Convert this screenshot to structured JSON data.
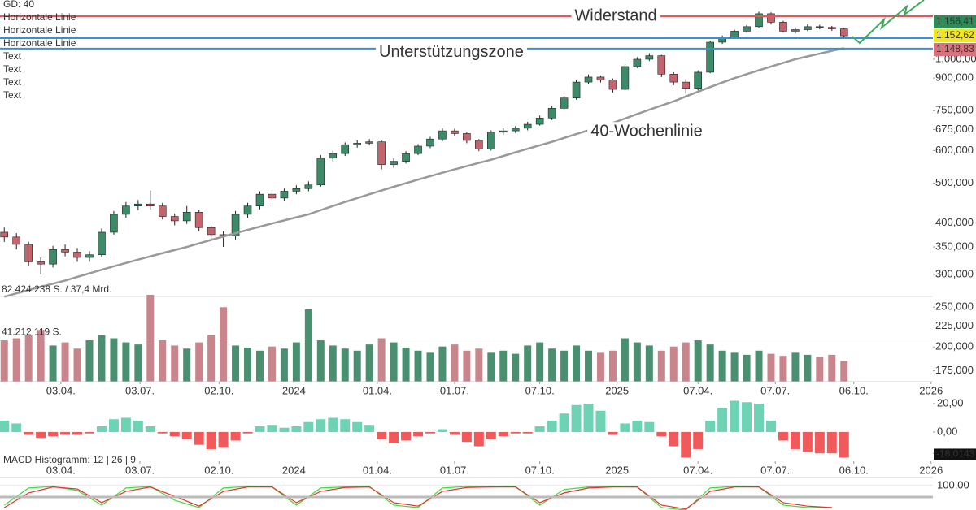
{
  "chart_data": {
    "type": "candlestick",
    "legend": [
      {
        "text": "GD: 40",
        "color": "#555555"
      },
      {
        "text": "Horizontale Linie",
        "color": "#3b8fd9"
      },
      {
        "text": "Horizontale Linie",
        "color": "#3b8fd9"
      },
      {
        "text": "Horizontale Linie",
        "color": "#e8545a"
      },
      {
        "text": "Text",
        "color": "#333333"
      },
      {
        "text": "Text",
        "color": "#333333"
      },
      {
        "text": "Text",
        "color": "#333333"
      },
      {
        "text": "Text",
        "color": "#333333"
      }
    ],
    "annotations": {
      "resistance": "Widerstand",
      "support": "Unterstützungszone",
      "ma_label": "40-Wochenlinie"
    },
    "lines": [
      {
        "value": 1272000,
        "color": "#e8545a"
      },
      {
        "value": 1125000,
        "color": "#3b8fd9"
      },
      {
        "value": 1061000,
        "color": "#3b8fd9"
      }
    ],
    "price_labels": [
      {
        "text": "1.156,41",
        "color": "#2e8b57"
      },
      {
        "text": "1.152,62",
        "color": "#f5e61a"
      },
      {
        "text": "1.148,83",
        "color": "#d9737b"
      }
    ],
    "x": [
      0,
      2,
      4,
      6,
      8,
      10,
      12,
      14,
      16,
      18,
      20,
      22,
      24,
      26,
      28,
      30,
      32,
      34,
      36,
      38,
      40,
      42,
      44,
      46,
      48,
      50,
      52,
      54,
      56,
      58,
      60,
      62,
      64,
      66,
      68,
      70,
      72,
      74,
      76,
      78,
      80,
      82,
      84,
      86,
      88,
      90,
      92,
      94,
      96,
      98,
      100,
      102,
      104,
      106,
      108,
      110,
      112,
      114,
      116,
      118,
      120,
      122,
      124,
      126,
      128,
      130,
      132,
      134,
      136,
      138
    ],
    "open": [
      380000,
      370000,
      355000,
      322000,
      318000,
      345000,
      340000,
      330000,
      335000,
      380000,
      420000,
      440000,
      445000,
      440000,
      415000,
      405000,
      425000,
      390000,
      375000,
      372000,
      420000,
      440000,
      470000,
      460000,
      478000,
      485000,
      495000,
      575000,
      590000,
      620000,
      625000,
      630000,
      555000,
      565000,
      590000,
      615000,
      640000,
      670000,
      660000,
      635000,
      605000,
      665000,
      670000,
      680000,
      695000,
      720000,
      760000,
      805000,
      880000,
      905000,
      890000,
      845000,
      960000,
      1000000,
      1020000,
      920000,
      880000,
      850000,
      930000,
      1100000,
      1130000,
      1170000,
      1200000,
      1290000,
      1230000,
      1170000,
      1180000,
      1200000,
      1195000,
      1185000
    ],
    "high": [
      390000,
      378000,
      360000,
      330000,
      352000,
      355000,
      348000,
      342000,
      388000,
      428000,
      450000,
      455000,
      480000,
      448000,
      422000,
      440000,
      430000,
      395000,
      382000,
      428000,
      448000,
      478000,
      476000,
      485000,
      494000,
      505000,
      585000,
      600000,
      628000,
      635000,
      640000,
      635000,
      575000,
      598000,
      622000,
      648000,
      680000,
      678000,
      665000,
      640000,
      672000,
      680000,
      688000,
      705000,
      730000,
      770000,
      815000,
      892000,
      918000,
      912000,
      898000,
      972000,
      1012000,
      1035000,
      1025000,
      930000,
      895000,
      940000,
      1110000,
      1142000,
      1180000,
      1212000,
      1305000,
      1300000,
      1240000,
      1195000,
      1215000,
      1212000,
      1205000,
      1192000
    ],
    "low": [
      360000,
      345000,
      315000,
      300000,
      312000,
      332000,
      322000,
      322000,
      330000,
      375000,
      412000,
      430000,
      432000,
      408000,
      395000,
      398000,
      382000,
      365000,
      350000,
      365000,
      412000,
      432000,
      450000,
      452000,
      470000,
      478000,
      490000,
      565000,
      582000,
      610000,
      618000,
      540000,
      545000,
      558000,
      585000,
      608000,
      632000,
      650000,
      625000,
      598000,
      600000,
      655000,
      662000,
      672000,
      690000,
      712000,
      752000,
      798000,
      870000,
      878000,
      830000,
      840000,
      952000,
      990000,
      905000,
      865000,
      825000,
      840000,
      925000,
      1090000,
      1120000,
      1160000,
      1190000,
      1215000,
      1160000,
      1155000,
      1170000,
      1182000,
      1172000,
      1130000
    ],
    "close": [
      370000,
      355000,
      322000,
      318000,
      345000,
      340000,
      330000,
      335000,
      380000,
      420000,
      440000,
      445000,
      440000,
      415000,
      405000,
      425000,
      390000,
      375000,
      372000,
      420000,
      440000,
      470000,
      460000,
      478000,
      485000,
      495000,
      575000,
      590000,
      620000,
      625000,
      630000,
      555000,
      565000,
      590000,
      615000,
      640000,
      670000,
      660000,
      635000,
      605000,
      665000,
      670000,
      680000,
      695000,
      720000,
      760000,
      805000,
      880000,
      905000,
      890000,
      845000,
      960000,
      1000000,
      1020000,
      920000,
      880000,
      850000,
      930000,
      1100000,
      1130000,
      1170000,
      1200000,
      1290000,
      1230000,
      1170000,
      1180000,
      1200000,
      1195000,
      1185000,
      1140000
    ],
    "up_color": "#3d8a68",
    "down_color": "#c4646d",
    "ma_values": [
      265000,
      270000,
      275000,
      280000,
      285000,
      290000,
      296000,
      302000,
      308000,
      314000,
      320000,
      326000,
      332000,
      338000,
      344000,
      350000,
      357000,
      364000,
      371000,
      378000,
      385000,
      392000,
      399000,
      406000,
      413000,
      420000,
      430000,
      440000,
      450000,
      460000,
      470000,
      480000,
      490000,
      500000,
      510000,
      520000,
      530000,
      540000,
      550000,
      560000,
      570000,
      582000,
      594000,
      606000,
      618000,
      630000,
      644000,
      658000,
      672000,
      686000,
      700000,
      718000,
      736000,
      754000,
      772000,
      790000,
      812000,
      834000,
      856000,
      878000,
      900000,
      920000,
      940000,
      960000,
      980000,
      1000000,
      1016000,
      1032000,
      1048000,
      1064000
    ],
    "ma_color": "#999999",
    "log_scale": true,
    "xlim": [
      -0.7,
      153
    ],
    "xticks": [
      {
        "value": 9.3,
        "label": "03.04."
      },
      {
        "value": 22.3,
        "label": "03.07."
      },
      {
        "value": 35.3,
        "label": "02.10."
      },
      {
        "value": 47.6,
        "label": "2024"
      },
      {
        "value": 61.3,
        "label": "01.04."
      },
      {
        "value": 74,
        "label": "01.07."
      },
      {
        "value": 88,
        "label": "07.10."
      },
      {
        "value": 100.7,
        "label": "2025"
      },
      {
        "value": 114,
        "label": "07.04."
      },
      {
        "value": 126.7,
        "label": "07.07."
      },
      {
        "value": 139.6,
        "label": "06.10."
      },
      {
        "value": 152.3,
        "label": "2026"
      }
    ],
    "ylim": [
      164700,
      1393000
    ],
    "yticks": [
      {
        "value": 1000000,
        "label": "1,000,000"
      },
      {
        "value": 900000,
        "label": "900,000"
      },
      {
        "value": 750000,
        "label": "750,000"
      },
      {
        "value": 675000,
        "label": "675,000"
      },
      {
        "value": 600000,
        "label": "600,000"
      },
      {
        "value": 500000,
        "label": "500,000"
      },
      {
        "value": 400000,
        "label": "400,000"
      },
      {
        "value": 350000,
        "label": "350,000"
      },
      {
        "value": 300000,
        "label": "300,000"
      },
      {
        "value": 250000,
        "label": "250,000"
      },
      {
        "value": 225000,
        "label": "225,000"
      },
      {
        "value": 200000,
        "label": "200,000"
      },
      {
        "value": 175000,
        "label": "175,000"
      }
    ],
    "volume": {
      "values": [
        40000000,
        42000000,
        45000000,
        50000000,
        35000000,
        38000000,
        32000000,
        40000000,
        45000000,
        42000000,
        38000000,
        36000000,
        84000000,
        40000000,
        35000000,
        32000000,
        38000000,
        45000000,
        72000000,
        35000000,
        33000000,
        30000000,
        34000000,
        32000000,
        38000000,
        70000000,
        40000000,
        35000000,
        32000000,
        30000000,
        36000000,
        42000000,
        38000000,
        33000000,
        30000000,
        28000000,
        34000000,
        36000000,
        30000000,
        32000000,
        28000000,
        30000000,
        27000000,
        35000000,
        38000000,
        32000000,
        30000000,
        35000000,
        30000000,
        28000000,
        30000000,
        42000000,
        38000000,
        35000000,
        30000000,
        34000000,
        38000000,
        40000000,
        36000000,
        30000000,
        28000000,
        26000000,
        30000000,
        27000000,
        25000000,
        28000000,
        26000000,
        24000000,
        26000000,
        20000000
      ],
      "ylim": [
        0,
        82424238
      ],
      "yticks": [
        {
          "value": 82424238,
          "label": "82.424.238 S. / 37,4 Mrd."
        },
        {
          "value": 41212119,
          "label": "41.212.119 S."
        }
      ],
      "up_color": "#4a9070",
      "down_color": "#c8868c"
    },
    "macd": {
      "title": "MACD Histogramm: 12 | 26 | 9",
      "values": [
        8,
        6,
        -2,
        -4,
        -3,
        -2,
        -2,
        -1,
        4,
        9,
        10,
        8,
        4,
        -1,
        -3,
        -5,
        -9,
        -12,
        -11,
        -6,
        -1,
        4,
        5,
        3,
        4,
        7,
        9,
        10,
        9,
        7,
        5,
        -5,
        -8,
        -6,
        -3,
        -1,
        2,
        -2,
        -7,
        -10,
        -5,
        -3,
        -1,
        -1,
        4,
        8,
        13,
        19,
        20,
        15,
        -2,
        6,
        8,
        7,
        -3,
        -10,
        -18,
        -12,
        8,
        17,
        22,
        21,
        20,
        8,
        -6,
        -12,
        -14,
        -15,
        -15,
        -18.0143
      ],
      "value_labels": {
        "69": "-18,0143"
      },
      "ylim": [
        -22.9,
        24
      ],
      "yticks": [
        {
          "value": 20,
          "label": "20,00"
        },
        {
          "value": 0,
          "label": "0,00"
        },
        {
          "value": -15,
          "label": "-15,00"
        }
      ],
      "up_color": "#6dd3b4",
      "down_color": "#f05a5a"
    },
    "stoch": {
      "x": [
        0,
        4,
        8,
        12,
        16,
        20,
        24,
        28,
        32,
        36,
        40,
        44,
        48,
        52,
        56,
        60,
        64,
        68,
        72,
        76,
        80,
        84,
        88,
        92,
        96,
        100,
        104,
        108,
        112,
        116,
        120,
        124,
        128,
        132,
        136
      ],
      "k": [
        60,
        95,
        98,
        90,
        60,
        95,
        98,
        70,
        55,
        95,
        98,
        97,
        60,
        95,
        97,
        98,
        60,
        55,
        95,
        98,
        97,
        98,
        60,
        92,
        97,
        98,
        97,
        55,
        50,
        95,
        98,
        97,
        60,
        55,
        55
      ],
      "d": [
        55,
        85,
        97,
        93,
        65,
        88,
        97,
        78,
        58,
        88,
        97,
        97,
        65,
        88,
        96,
        97,
        65,
        58,
        88,
        96,
        97,
        97,
        65,
        85,
        95,
        97,
        97,
        60,
        52,
        88,
        97,
        97,
        65,
        58,
        55
      ],
      "k_color": "#3ddc3d",
      "d_color": "#e83030",
      "ylim": [
        50,
        113
      ],
      "yticks": [
        {
          "value": 100,
          "label": "100,00"
        }
      ]
    }
  }
}
